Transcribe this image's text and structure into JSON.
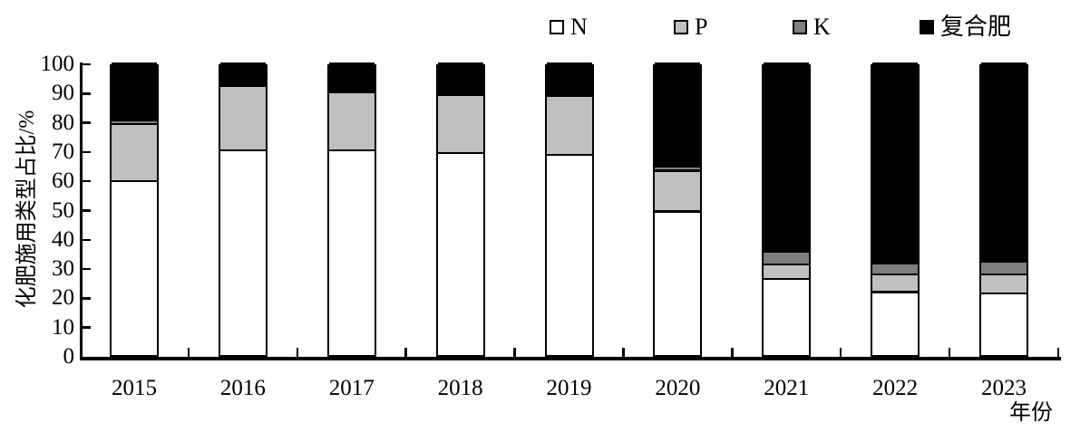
{
  "chart_data": {
    "type": "bar",
    "stacked": true,
    "categories": [
      "2015",
      "2016",
      "2017",
      "2018",
      "2019",
      "2020",
      "2021",
      "2022",
      "2023"
    ],
    "series": [
      {
        "name": "N",
        "color": "#ffffff",
        "values": [
          59.5,
          70,
          70,
          69,
          68.5,
          49,
          26,
          21.5,
          21
        ]
      },
      {
        "name": "P",
        "color": "#c0c0c0",
        "values": [
          19.5,
          22,
          20,
          20,
          20,
          14,
          5,
          6,
          6.5
        ]
      },
      {
        "name": "K",
        "color": "#7f7f7f",
        "values": [
          1,
          0,
          0,
          0,
          0,
          1,
          4,
          3.5,
          4
        ]
      },
      {
        "name": "复合肥",
        "color": "#000000",
        "values": [
          20,
          8,
          10,
          11,
          11.5,
          36,
          65,
          69,
          68.5
        ]
      }
    ],
    "ylabel": "化肥施用类型占比/%",
    "xlabel": "年份",
    "ylim": [
      0,
      100
    ],
    "yticks": [
      0,
      10,
      20,
      30,
      40,
      50,
      60,
      70,
      80,
      90,
      100
    ],
    "legend_position": "top",
    "grid": false,
    "axis_color": "#000000"
  }
}
